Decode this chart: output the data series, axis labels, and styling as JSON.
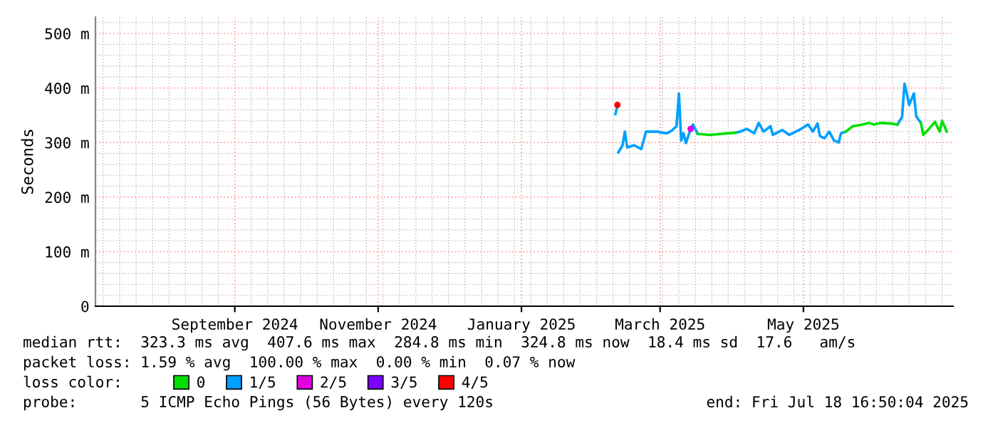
{
  "chart_data": {
    "type": "line",
    "ylabel": "Seconds",
    "xlim": [
      "2024-07-18T16:50",
      "2025-07-18T16:50"
    ],
    "xticks": [
      {
        "value": "2024-09-16",
        "label": "September 2024"
      },
      {
        "value": "2024-11-16",
        "label": "November 2024"
      },
      {
        "value": "2025-01-16",
        "label": "January 2025"
      },
      {
        "value": "2025-03-16",
        "label": "March 2025"
      },
      {
        "value": "2025-05-16",
        "label": "May 2025"
      }
    ],
    "ylim": [
      0,
      530
    ],
    "yticks": [
      {
        "value": 0,
        "label": "0"
      },
      {
        "value": 100,
        "label": "100 m"
      },
      {
        "value": 200,
        "label": "200 m"
      },
      {
        "value": 300,
        "label": "300 m"
      },
      {
        "value": 400,
        "label": "400 m"
      },
      {
        "value": 500,
        "label": "500 m"
      }
    ],
    "grid": true,
    "legend": "bottom",
    "legend_title": "loss color:",
    "series": [
      {
        "name": "0",
        "color": "#00e000",
        "x": [
          "2025-04-01",
          "2025-04-06",
          "2025-04-11",
          "2025-04-17",
          "2025-05-01",
          "2025-06-03",
          "2025-06-06",
          "2025-06-10",
          "2025-06-13",
          "2025-06-15",
          "2025-06-18",
          "2025-06-22",
          "2025-06-25",
          "2025-06-30",
          "2025-07-05",
          "2025-07-06",
          "2025-07-08",
          "2025-07-11",
          "2025-07-13",
          "2025-07-14",
          "2025-07-16"
        ],
        "values": [
          316,
          314,
          316,
          318,
          null,
          320,
          330,
          333,
          336,
          333,
          336,
          335,
          333,
          null,
          336,
          314,
          323,
          338,
          320,
          340,
          320
        ]
      },
      {
        "name": "1/5",
        "color": "#00a0ff",
        "x": [
          "2025-02-25",
          "2025-02-25T20:00",
          "2025-02-26T02:00",
          "2025-02-26T06:00",
          "2025-02-28",
          "2025-03-01",
          "2025-03-02",
          "2025-03-05",
          "2025-03-08",
          "2025-03-10",
          "2025-03-15",
          "2025-03-17",
          "2025-03-19",
          "2025-03-21",
          "2025-03-22",
          "2025-03-23",
          "2025-03-24",
          "2025-03-25",
          "2025-03-26",
          "2025-03-27",
          "2025-03-29",
          "2025-03-30",
          "2025-04-01",
          "2025-04-09",
          "2025-04-17",
          "2025-04-19",
          "2025-04-22",
          "2025-04-25",
          "2025-04-27",
          "2025-04-29",
          "2025-05-02",
          "2025-05-03",
          "2025-05-07",
          "2025-05-10",
          "2025-05-15",
          "2025-05-18",
          "2025-05-20",
          "2025-05-22",
          "2025-05-23",
          "2025-05-25",
          "2025-05-27",
          "2025-05-29",
          "2025-05-31",
          "2025-06-01",
          "2025-06-03",
          "2025-06-14",
          "2025-06-25",
          "2025-06-27",
          "2025-06-28",
          "2025-06-29",
          "2025-06-30",
          "2025-07-02",
          "2025-07-03",
          "2025-07-05"
        ],
        "values": [
          352,
          369,
          null,
          282,
          295,
          320,
          291,
          295,
          288,
          320,
          320,
          318,
          317,
          322,
          326,
          330,
          390,
          304,
          317,
          299,
          325,
          333,
          316,
          null,
          318,
          320,
          325,
          317,
          336,
          320,
          330,
          314,
          323,
          314,
          325,
          333,
          320,
          335,
          312,
          308,
          320,
          304,
          300,
          317,
          320,
          null,
          333,
          347,
          408,
          390,
          369,
          390,
          348,
          336
        ]
      },
      {
        "name": "2/5",
        "type": "scatter",
        "color": "#e000e0",
        "x": [
          "2025-03-29"
        ],
        "values": [
          325
        ]
      },
      {
        "name": "3/5",
        "color": "#8000ff"
      },
      {
        "name": "4/5",
        "type": "scatter",
        "color": "#ff0000",
        "x": [
          "2025-02-25T20:00"
        ],
        "values": [
          369
        ]
      }
    ],
    "annotations": [
      "median rtt:  323.3 ms avg  407.6 ms max  284.8 ms min  324.8 ms now  18.4 ms sd  17.6   am/s",
      "packet loss: 1.59 % avg  100.00 % max  0.00 % min  0.07 % now",
      "probe:       5 ICMP Echo Pings (56 Bytes) every 120s",
      "end: Fri Jul 18 16:50:04 2025"
    ]
  }
}
